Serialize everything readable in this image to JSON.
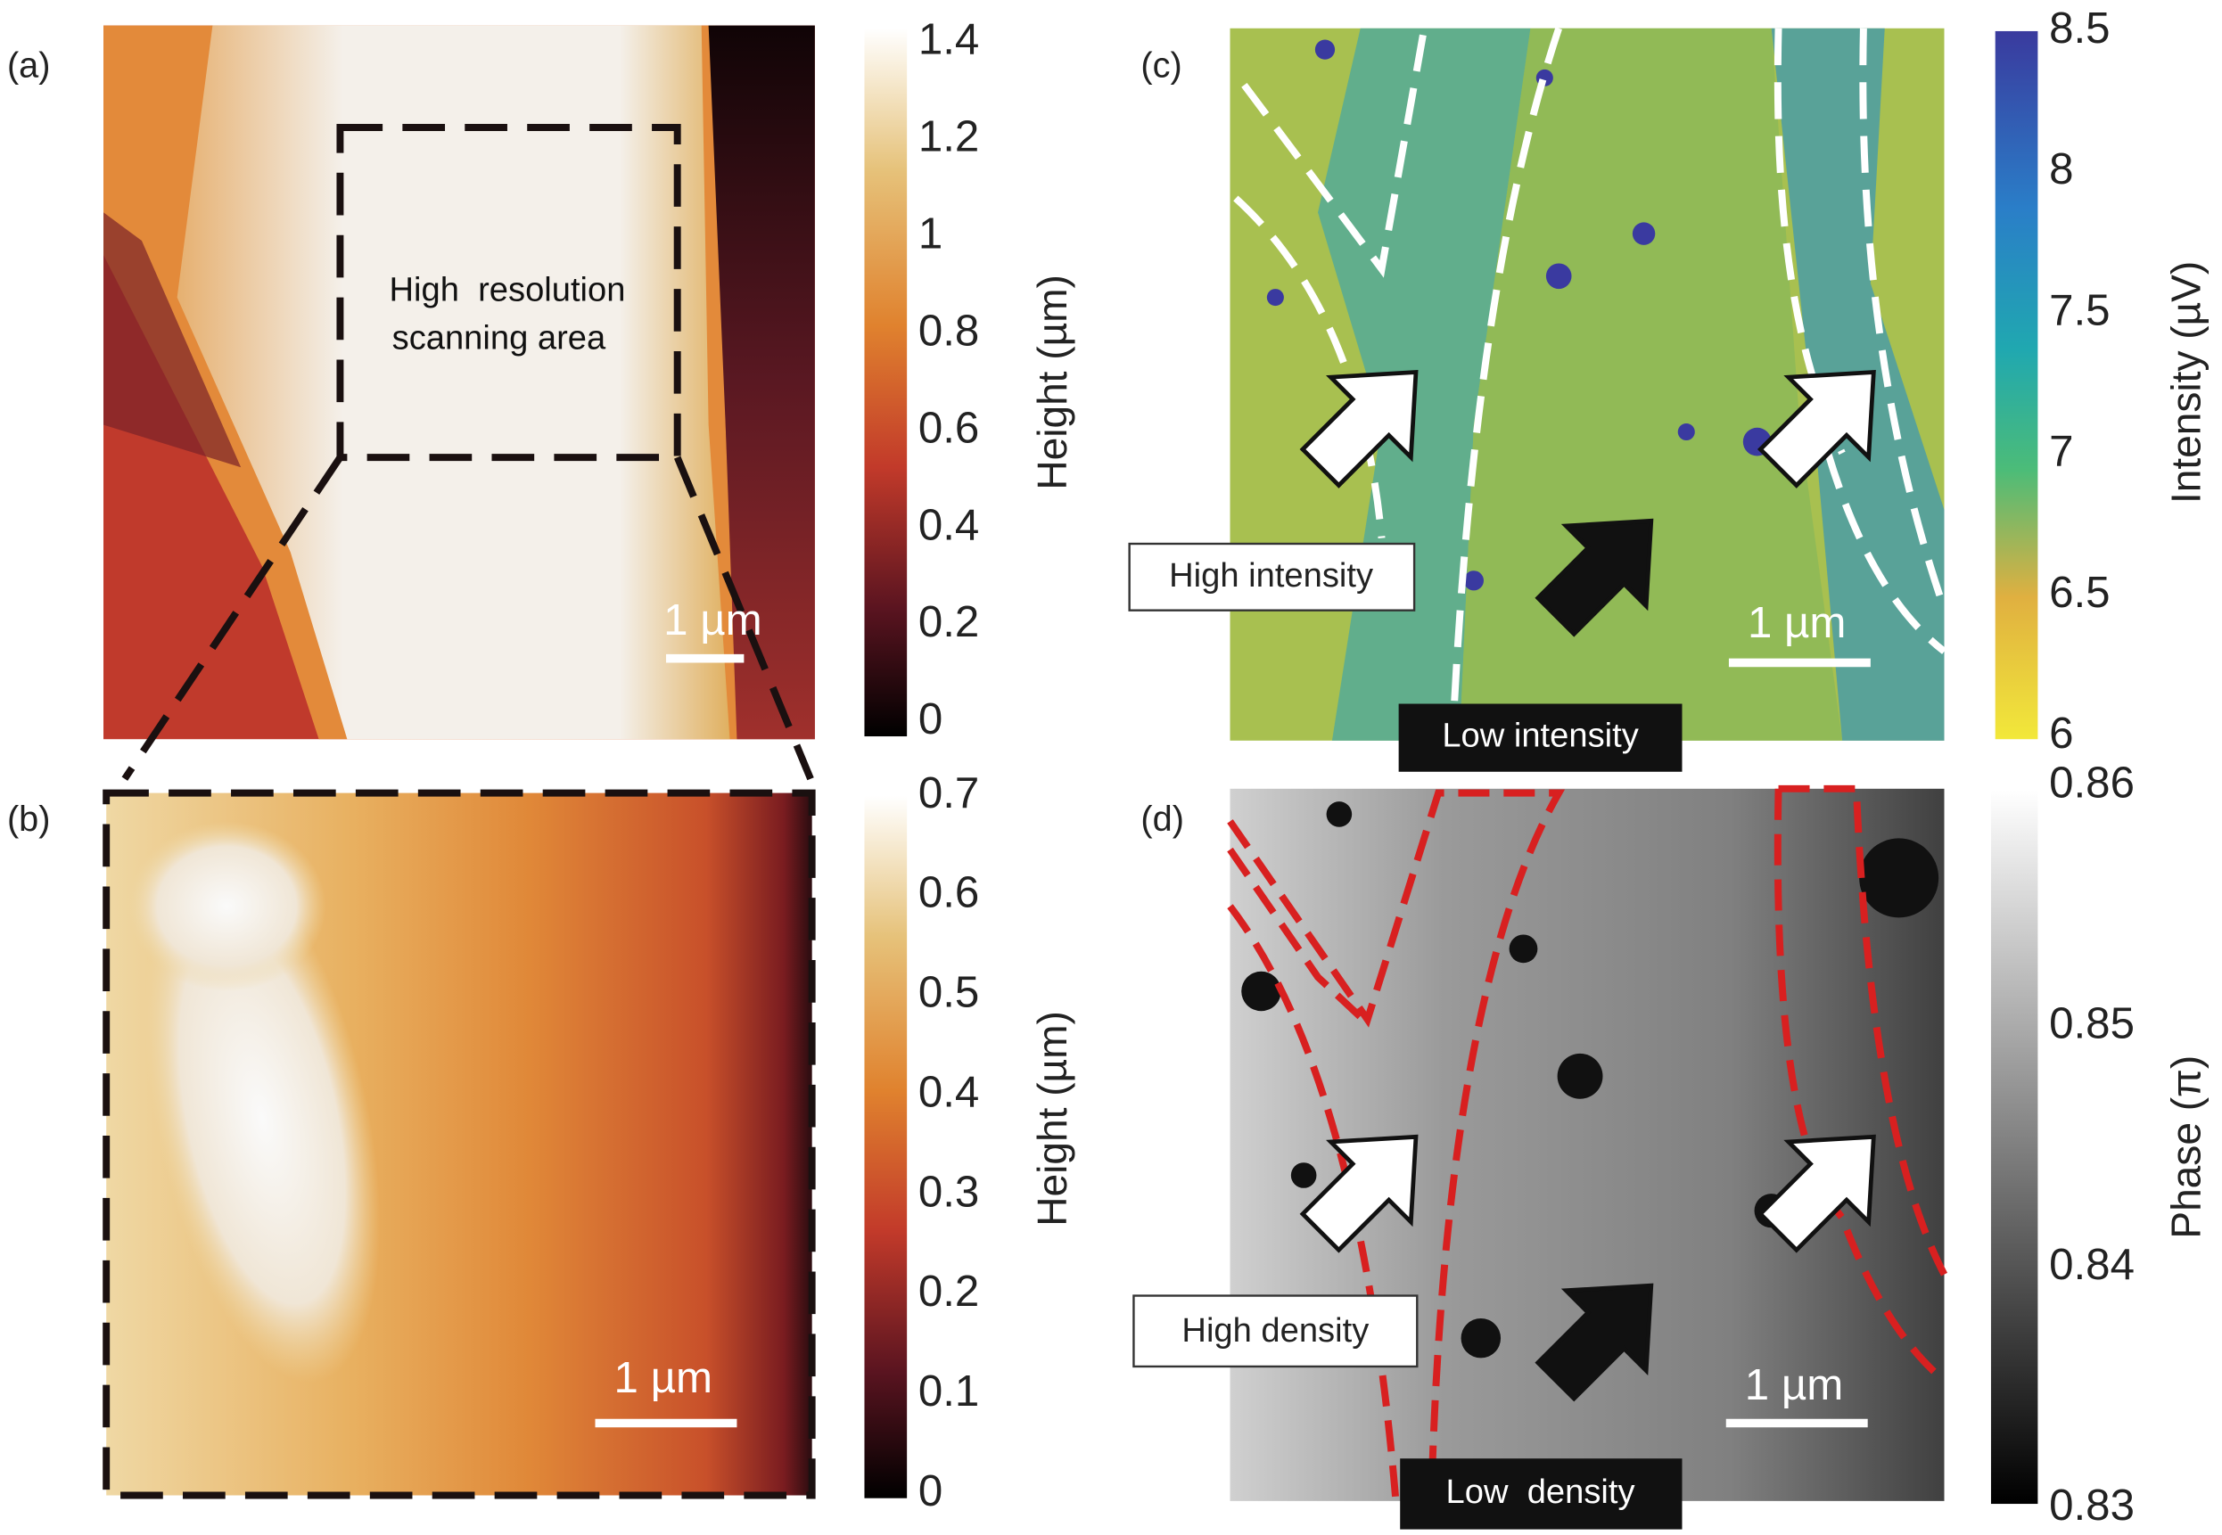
{
  "panel_a": {
    "label": "(a)",
    "box_text": [
      "High  resolution",
      "scanning area"
    ],
    "scale_bar": "1 µm",
    "colorbar": {
      "title": "Height (µm)",
      "ticks": [
        0,
        0.2,
        0.4,
        0.6,
        0.8,
        1,
        1.2,
        1.4
      ]
    }
  },
  "panel_b": {
    "label": "(b)",
    "scale_bar": "1 µm",
    "colorbar": {
      "title": "Height (µm)",
      "ticks": [
        0,
        0.1,
        0.2,
        0.3,
        0.4,
        0.5,
        0.6,
        0.7
      ]
    }
  },
  "panel_c": {
    "label": "(c)",
    "scale_bar": "1 µm",
    "high_label": "High intensity",
    "low_label": "Low intensity",
    "colorbar": {
      "title": "Intensity (µV)",
      "ticks": [
        6,
        6.5,
        7,
        7.5,
        8,
        8.5
      ]
    }
  },
  "panel_d": {
    "label": "(d)",
    "scale_bar": "1 µm",
    "high_label": "High density",
    "low_label": "Low  density",
    "colorbar": {
      "title": "Phase (π)",
      "ticks": [
        0.83,
        0.84,
        0.85,
        0.86
      ]
    }
  }
}
